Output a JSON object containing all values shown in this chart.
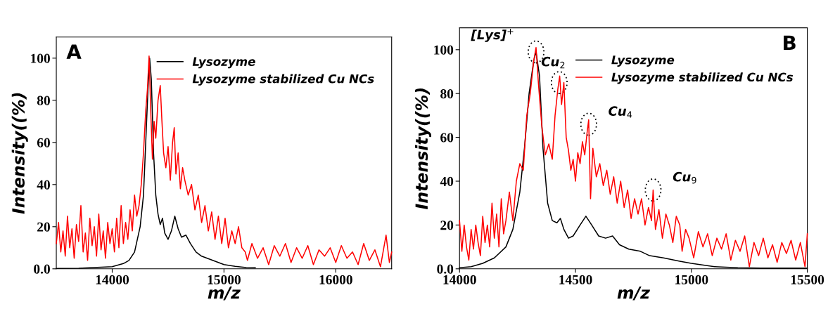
{
  "chart_data": [
    {
      "type": "line",
      "title": "A",
      "xlabel": "m/z",
      "ylabel": "Intensity((%)",
      "xlim": [
        13500,
        16500
      ],
      "ylim": [
        0,
        110
      ],
      "xticks": [
        14000,
        15000,
        16000
      ],
      "yticks": [
        {
          "value": 0,
          "label": "0.0"
        },
        20,
        40,
        60,
        80,
        100
      ],
      "grid": false,
      "legend": "top right",
      "series": [
        {
          "name": "Lysozyme",
          "color": "#000000",
          "x": [
            13500,
            13700,
            13900,
            14000,
            14100,
            14150,
            14200,
            14250,
            14280,
            14300,
            14320,
            14335,
            14350,
            14370,
            14390,
            14410,
            14430,
            14450,
            14470,
            14500,
            14530,
            14560,
            14590,
            14620,
            14660,
            14700,
            14750,
            14800,
            14850,
            14900,
            15000,
            15100,
            15200,
            15280
          ],
          "values": [
            0.2,
            0.3,
            0.8,
            1,
            2.5,
            4,
            8,
            20,
            35,
            60,
            85,
            100,
            90,
            55,
            35,
            26,
            21,
            24,
            17,
            14,
            18,
            25,
            19,
            15,
            16,
            12,
            8,
            6,
            5,
            4,
            2,
            1.2,
            0.6,
            0.5
          ]
        },
        {
          "name": "Lysozyme stabilized Cu NCs",
          "color": "#ff0000",
          "x": [
            13500,
            13520,
            13540,
            13560,
            13580,
            13600,
            13620,
            13640,
            13660,
            13680,
            13700,
            13720,
            13740,
            13760,
            13780,
            13800,
            13820,
            13840,
            13860,
            13880,
            13900,
            13920,
            13940,
            13960,
            13980,
            14000,
            14020,
            14040,
            14060,
            14080,
            14100,
            14120,
            14140,
            14160,
            14180,
            14200,
            14220,
            14240,
            14260,
            14280,
            14300,
            14315,
            14330,
            14345,
            14360,
            14375,
            14390,
            14410,
            14430,
            14445,
            14460,
            14480,
            14500,
            14520,
            14540,
            14555,
            14570,
            14590,
            14610,
            14630,
            14650,
            14680,
            14710,
            14740,
            14770,
            14800,
            14830,
            14860,
            14890,
            14920,
            14950,
            14980,
            15010,
            15040,
            15070,
            15100,
            15130,
            15160,
            15190,
            15210,
            15250,
            15300,
            15350,
            15400,
            15450,
            15500,
            15550,
            15600,
            15650,
            15700,
            15750,
            15800,
            15850,
            15900,
            15950,
            16000,
            16050,
            16100,
            16150,
            16200,
            16250,
            16300,
            16350,
            16400,
            16450,
            16480,
            16500
          ],
          "values": [
            12,
            22,
            8,
            18,
            6,
            25,
            10,
            19,
            5,
            21,
            13,
            30,
            8,
            17,
            4,
            24,
            11,
            20,
            6,
            26,
            9,
            18,
            5,
            22,
            12,
            19,
            8,
            24,
            10,
            30,
            12,
            22,
            14,
            28,
            18,
            35,
            25,
            30,
            40,
            55,
            75,
            85,
            101,
            75,
            52,
            70,
            62,
            80,
            87,
            70,
            55,
            48,
            58,
            42,
            60,
            67,
            45,
            55,
            38,
            48,
            42,
            35,
            40,
            28,
            35,
            22,
            30,
            18,
            27,
            14,
            25,
            12,
            24,
            10,
            18,
            12,
            20,
            10,
            8,
            4,
            12,
            5,
            10,
            2,
            11,
            6,
            12,
            3,
            10,
            5,
            11,
            2,
            9,
            6,
            10,
            3,
            11,
            5,
            8,
            2,
            12,
            4,
            9,
            1,
            16,
            3,
            8
          ]
        }
      ]
    },
    {
      "type": "line",
      "title": "B",
      "xlabel": "m/z",
      "ylabel": "Intensity((%)",
      "xlim": [
        14000,
        15500
      ],
      "ylim": [
        0,
        110
      ],
      "xticks": [
        14000,
        14500,
        15000,
        15500
      ],
      "yticks": [
        {
          "value": 0,
          "label": "0.0"
        },
        20,
        40,
        60,
        80,
        100
      ],
      "grid": false,
      "legend": "top right",
      "annotations": [
        {
          "text": "[Lys]$^{+}$",
          "x": 14330,
          "y": 99
        },
        {
          "text": "Cu$_{2}$",
          "x": 14430,
          "y": 85
        },
        {
          "text": "Cu$_{4}$",
          "x": 14557,
          "y": 66
        },
        {
          "text": "Cu$_{9}$",
          "x": 14835,
          "y": 36
        }
      ],
      "series": [
        {
          "name": "Lysozyme",
          "color": "#000000",
          "x": [
            14000,
            14050,
            14100,
            14150,
            14200,
            14230,
            14260,
            14280,
            14300,
            14320,
            14330,
            14345,
            14360,
            14380,
            14400,
            14420,
            14435,
            14450,
            14470,
            14490,
            14520,
            14545,
            14570,
            14600,
            14630,
            14660,
            14690,
            14730,
            14780,
            14820,
            14880,
            14950,
            15000,
            15100,
            15200,
            15300,
            15500
          ],
          "values": [
            0.5,
            1,
            2.5,
            5,
            10,
            18,
            35,
            55,
            80,
            95,
            99,
            88,
            55,
            30,
            22,
            21,
            23,
            18,
            14,
            15,
            20,
            24,
            20,
            15,
            14,
            15,
            11,
            9,
            8,
            6,
            5,
            3.5,
            2.5,
            1,
            0.5,
            0.3,
            0.3
          ]
        },
        {
          "name": "Lysozyme stabilized Cu NCs",
          "color": "#ff0000",
          "x": [
            14000,
            14010,
            14020,
            14030,
            14040,
            14050,
            14060,
            14070,
            14080,
            14090,
            14100,
            14110,
            14120,
            14130,
            14140,
            14150,
            14160,
            14170,
            14180,
            14190,
            14200,
            14215,
            14230,
            14245,
            14260,
            14275,
            14290,
            14305,
            14320,
            14330,
            14340,
            14355,
            14370,
            14385,
            14400,
            14412,
            14424,
            14432,
            14440,
            14450,
            14460,
            14470,
            14480,
            14490,
            14500,
            14510,
            14520,
            14530,
            14540,
            14550,
            14557,
            14565,
            14575,
            14590,
            14605,
            14620,
            14635,
            14650,
            14665,
            14680,
            14695,
            14710,
            14725,
            14740,
            14755,
            14770,
            14785,
            14800,
            14815,
            14828,
            14835,
            14845,
            14860,
            14875,
            14890,
            14905,
            14920,
            14935,
            14950,
            14960,
            14975,
            14990,
            15010,
            15030,
            15050,
            15070,
            15090,
            15110,
            15130,
            15150,
            15170,
            15190,
            15210,
            15230,
            15250,
            15270,
            15290,
            15310,
            15330,
            15350,
            15370,
            15390,
            15410,
            15430,
            15450,
            15470,
            15490,
            15500
          ],
          "values": [
            22,
            8,
            20,
            10,
            4,
            18,
            9,
            20,
            12,
            6,
            24,
            12,
            20,
            10,
            30,
            14,
            25,
            10,
            32,
            16,
            22,
            35,
            22,
            40,
            48,
            45,
            70,
            80,
            95,
            101,
            85,
            65,
            52,
            57,
            50,
            70,
            82,
            88,
            75,
            85,
            60,
            54,
            45,
            50,
            40,
            53,
            48,
            58,
            52,
            62,
            68,
            32,
            55,
            42,
            48,
            38,
            45,
            34,
            42,
            30,
            40,
            28,
            36,
            23,
            32,
            25,
            32,
            20,
            28,
            22,
            36,
            18,
            27,
            14,
            25,
            20,
            12,
            24,
            20,
            8,
            18,
            14,
            5,
            17,
            10,
            16,
            6,
            14,
            9,
            16,
            4,
            13,
            8,
            15,
            1,
            12,
            6,
            14,
            5,
            11,
            3,
            12,
            7,
            13,
            4,
            12,
            1,
            16
          ]
        }
      ]
    }
  ]
}
